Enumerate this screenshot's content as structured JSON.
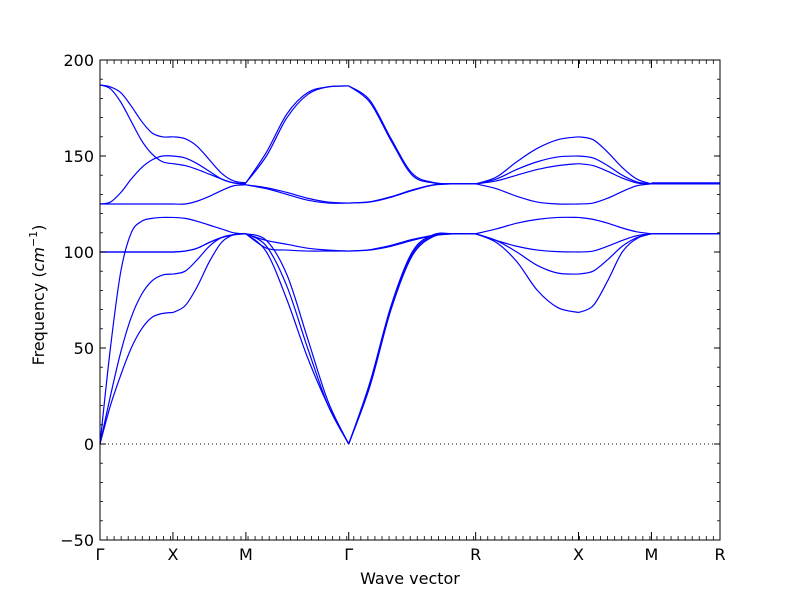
{
  "chart_data": {
    "type": "line",
    "xlabel": "Wave vector",
    "ylabel": "Frequency",
    "ylabel_unit_base": "cm",
    "ylabel_unit_exp": "−1",
    "ylim": [
      -50,
      200
    ],
    "yticks": [
      -50,
      0,
      50,
      100,
      150,
      200
    ],
    "ytick_labels": [
      "−50",
      "0",
      "50",
      "100",
      "150",
      "200"
    ],
    "xlim": [
      0,
      8.5
    ],
    "high_symmetry_points": [
      {
        "label": "Γ",
        "x": 0
      },
      {
        "label": "X",
        "x": 1
      },
      {
        "label": "M",
        "x": 2
      },
      {
        "label": "Γ",
        "x": 3.41
      },
      {
        "label": "R",
        "x": 5.15
      },
      {
        "label": "X",
        "x": 6.56
      },
      {
        "label": "M",
        "x": 7.56
      },
      {
        "label": "R",
        "x": 8.5
      }
    ],
    "zero_line": 0,
    "series_color": "#0000ff",
    "segments": [
      {
        "x_range": [
          0,
          1
        ],
        "series": [
          {
            "values": [
              0,
              20,
              36,
              50,
              60,
              66,
              68,
              68.5
            ]
          },
          {
            "values": [
              0,
              25,
              48,
              66,
              78,
              85,
              88,
              88.5
            ]
          },
          {
            "values": [
              0,
              50,
              90,
              110,
              116,
              117.5,
              118,
              118
            ]
          },
          {
            "values": [
              100,
              100,
              100,
              100,
              100,
              100,
              100,
              100
            ]
          },
          {
            "values": [
              100,
              100,
              100,
              100,
              100,
              100,
              100,
              100
            ]
          },
          {
            "values": [
              125,
              125,
              125,
              125,
              125,
              125,
              125,
              125
            ]
          },
          {
            "values": [
              125,
              126,
              131,
              138,
              144,
              148,
              150,
              150
            ]
          },
          {
            "values": [
              187,
              185,
              178,
              168,
              158,
              151,
              147,
              146
            ]
          },
          {
            "values": [
              187,
              186,
              183,
              176,
              168,
              162,
              160,
              160
            ]
          }
        ]
      },
      {
        "x_range": [
          1,
          2
        ],
        "series": [
          {
            "values": [
              68.5,
              72,
              82,
              95,
              105,
              109,
              109.5
            ]
          },
          {
            "values": [
              88.5,
              90,
              96,
              103,
              107.5,
              109,
              109.5
            ]
          },
          {
            "values": [
              100,
              100.5,
              102,
              105,
              107.5,
              109,
              109.5
            ]
          },
          {
            "values": [
              100,
              100.5,
              102,
              105,
              107.5,
              109,
              109.5
            ]
          },
          {
            "values": [
              118,
              117.5,
              116,
              114,
              112,
              110,
              109.5
            ]
          },
          {
            "values": [
              125,
              125,
              126.5,
              129,
              132,
              134.5,
              135
            ]
          },
          {
            "values": [
              150,
              149,
              146,
              142,
              138,
              136,
              135.5
            ]
          },
          {
            "values": [
              146,
              145,
              143,
              140.5,
              138,
              136,
              135.5
            ]
          },
          {
            "values": [
              160,
              159,
              155,
              148,
              141,
              137,
              136
            ]
          }
        ]
      },
      {
        "x_range": [
          2,
          3.41
        ],
        "series": [
          {
            "values": [
              109.5,
              100,
              75,
              45,
              20,
              0
            ]
          },
          {
            "values": [
              109.5,
              103,
              82,
              50,
              20,
              0
            ]
          },
          {
            "values": [
              109.5,
              106,
              88,
              55,
              22,
              0
            ]
          },
          {
            "values": [
              109.5,
              102,
              101,
              100.5,
              100.5,
              100.5
            ]
          },
          {
            "values": [
              109.5,
              106,
              104,
              102,
              101,
              100.5
            ]
          },
          {
            "values": [
              135,
              133,
              130,
              127,
              125.5,
              125.5
            ]
          },
          {
            "values": [
              135,
              133.5,
              131,
              128,
              126,
              125.5
            ]
          },
          {
            "values": [
              136,
              150,
              170,
              182,
              186,
              186.5
            ]
          },
          {
            "values": [
              136,
              152,
              172,
              183,
              186,
              186.5
            ]
          }
        ]
      },
      {
        "x_range": [
          3.41,
          5.15
        ],
        "series": [
          {
            "values": [
              0,
              30,
              70,
              98,
              108,
              109.5,
              109.5
            ]
          },
          {
            "values": [
              0,
              31,
              71,
              99,
              108.5,
              109.5,
              109.5
            ]
          },
          {
            "values": [
              0,
              32,
              72,
              100,
              109,
              109.5,
              109.5
            ]
          },
          {
            "values": [
              100.5,
              101,
              103,
              106,
              108.5,
              109.5,
              109.5
            ]
          },
          {
            "values": [
              100.5,
              101.2,
              103.5,
              106.5,
              108.7,
              109.5,
              109.5
            ]
          },
          {
            "values": [
              125.5,
              126,
              128.5,
              132,
              134.8,
              135.5,
              135.5
            ]
          },
          {
            "values": [
              125.5,
              126.2,
              128.8,
              132.3,
              135,
              135.5,
              135.5
            ]
          },
          {
            "values": [
              186.5,
              178,
              158,
              140,
              136,
              135.5,
              135.5
            ]
          },
          {
            "values": [
              186.5,
              179,
              159,
              141,
              136.2,
              135.5,
              135.5
            ]
          }
        ]
      },
      {
        "x_range": [
          5.15,
          6.56
        ],
        "series": [
          {
            "values": [
              109.5,
              105,
              95,
              80,
              71,
              68.5
            ]
          },
          {
            "values": [
              109.5,
              106,
              100,
              93,
              89,
              88.5
            ]
          },
          {
            "values": [
              109.5,
              106,
              103,
              101,
              100.2,
              100
            ]
          },
          {
            "values": [
              109.5,
              112,
              115,
              117,
              118,
              118
            ]
          },
          {
            "values": [
              135.5,
              133,
              129,
              126,
              125,
              125
            ]
          },
          {
            "values": [
              135.5,
              137,
              140,
              143,
              145,
              146
            ]
          },
          {
            "values": [
              135.5,
              138,
              143,
              147,
              149.5,
              150
            ]
          },
          {
            "values": [
              135.5,
              139,
              147,
              154,
              158.5,
              160
            ]
          }
        ]
      },
      {
        "x_range": [
          6.56,
          7.56
        ],
        "series": [
          {
            "values": [
              68.5,
              72,
              85,
              100,
              107,
              109.5
            ]
          },
          {
            "values": [
              88.5,
              90,
              96,
              103,
              107.5,
              109.5
            ]
          },
          {
            "values": [
              100,
              100.5,
              103,
              106,
              108.5,
              109.5
            ]
          },
          {
            "values": [
              118,
              117,
              115,
              112.5,
              110.5,
              109.5
            ]
          },
          {
            "values": [
              125,
              125.5,
              128,
              131.5,
              134.5,
              135.5
            ]
          },
          {
            "values": [
              146,
              145,
              142,
              138.5,
              136,
              135.5
            ]
          },
          {
            "values": [
              150,
              149,
              145,
              140,
              136.5,
              135.5
            ]
          },
          {
            "values": [
              160,
              158.5,
              152,
              144,
              138,
              135.5
            ]
          }
        ]
      },
      {
        "x_range": [
          7.56,
          8.5
        ],
        "series": [
          {
            "values": [
              109.5,
              109.5
            ]
          },
          {
            "values": [
              109.5,
              109.5
            ]
          },
          {
            "values": [
              135.5,
              135.5
            ]
          },
          {
            "values": [
              135.5,
              135.5
            ]
          },
          {
            "values": [
              136,
              136
            ]
          }
        ]
      }
    ]
  }
}
